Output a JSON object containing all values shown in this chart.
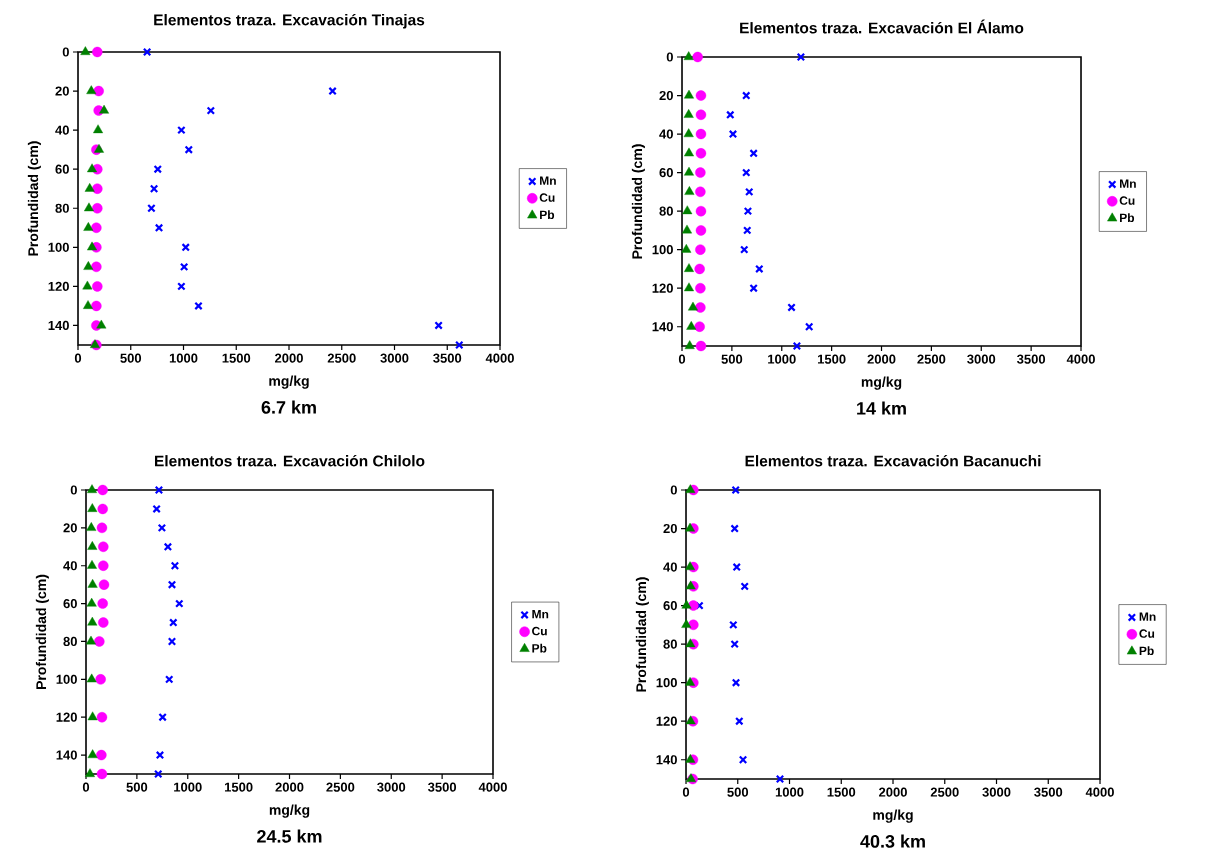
{
  "chart_data": [
    {
      "type": "scatter",
      "title": "Elementos traza. Excavación Tinajas",
      "xlabel": "mg/kg",
      "ylabel": "Profundidad (cm)",
      "annotations": [
        "6.7 km"
      ],
      "xlim": [
        0,
        4000
      ],
      "xticks": [
        0,
        500,
        1000,
        1500,
        2000,
        2500,
        3000,
        3500,
        4000
      ],
      "ylim": [
        150,
        0
      ],
      "yticks": [
        0,
        20,
        40,
        60,
        80,
        100,
        120,
        140
      ],
      "legend": "right",
      "series": [
        {
          "name": "Mn",
          "color": "#0000ff",
          "marker": "cross",
          "x": [
            655,
            2413,
            1259,
            980,
            1050,
            756,
            721,
            696,
            768,
            1021,
            1006,
            980,
            1142,
            3418,
            3614
          ],
          "values": [
            0,
            20,
            30,
            40,
            50,
            60,
            70,
            80,
            90,
            100,
            110,
            120,
            130,
            140,
            150
          ]
        },
        {
          "name": "Cu",
          "color": "#ff00ff",
          "marker": "circle",
          "x": [
            183,
            196,
            196,
            null,
            174,
            183,
            183,
            183,
            174,
            174,
            174,
            183,
            174,
            174,
            174
          ],
          "values": [
            0,
            20,
            30,
            null,
            50,
            60,
            70,
            80,
            90,
            100,
            110,
            120,
            130,
            140,
            150
          ]
        },
        {
          "name": "Pb",
          "color": "#008000",
          "marker": "triangle",
          "x": [
            70,
            126,
            247,
            190,
            199,
            133,
            111,
            104,
            98,
            133,
            98,
            89,
            95,
            221,
            161
          ],
          "values": [
            0,
            20,
            30,
            40,
            50,
            60,
            70,
            80,
            90,
            100,
            110,
            120,
            130,
            140,
            150
          ]
        }
      ]
    },
    {
      "type": "scatter",
      "title": "Elementos traza. Excavación El Álamo",
      "xlabel": "mg/kg",
      "ylabel": "Profundidad (cm)",
      "annotations": [
        "14 km"
      ],
      "xlim": [
        0,
        4000
      ],
      "xticks": [
        0,
        500,
        1000,
        1500,
        2000,
        2500,
        3000,
        3500,
        4000
      ],
      "ylim": [
        150,
        0
      ],
      "yticks": [
        0,
        20,
        40,
        60,
        80,
        100,
        120,
        140
      ],
      "legend": "right",
      "series": [
        {
          "name": "Mn",
          "color": "#0000ff",
          "marker": "cross",
          "x": [
            1192,
            644,
            484,
            511,
            718,
            644,
            674,
            661,
            654,
            624,
            775,
            718,
            1098,
            1275,
            1152
          ],
          "values": [
            0,
            20,
            30,
            40,
            50,
            60,
            70,
            80,
            90,
            100,
            110,
            120,
            130,
            140,
            150
          ]
        },
        {
          "name": "Cu",
          "color": "#ff00ff",
          "marker": "circle",
          "x": [
            157,
            190,
            190,
            190,
            190,
            184,
            184,
            190,
            190,
            184,
            177,
            184,
            184,
            177,
            190
          ],
          "values": [
            0,
            20,
            30,
            40,
            50,
            60,
            70,
            80,
            90,
            100,
            110,
            120,
            130,
            140,
            150
          ]
        },
        {
          "name": "Pb",
          "color": "#008000",
          "marker": "triangle",
          "x": [
            67,
            70,
            67,
            67,
            70,
            70,
            74,
            53,
            50,
            43,
            70,
            70,
            110,
            93,
            77
          ],
          "values": [
            0,
            20,
            30,
            40,
            50,
            60,
            70,
            80,
            90,
            100,
            110,
            120,
            130,
            140,
            150
          ]
        }
      ]
    },
    {
      "type": "scatter",
      "title": "Elementos traza. Excavación Chilolo",
      "xlabel": "mg/kg",
      "ylabel": "Profundidad (cm)",
      "annotations": [
        "24.5 km"
      ],
      "xlim": [
        0,
        4000
      ],
      "xticks": [
        0,
        500,
        1000,
        1500,
        2000,
        2500,
        3000,
        3500,
        4000
      ],
      "ylim": [
        150,
        0
      ],
      "yticks": [
        0,
        20,
        40,
        60,
        80,
        100,
        120,
        140
      ],
      "legend": "right",
      "series": [
        {
          "name": "Mn",
          "color": "#0000ff",
          "marker": "cross",
          "x": [
            717,
            694,
            746,
            805,
            874,
            845,
            917,
            858,
            845,
            818,
            753,
            727,
            710
          ],
          "values": [
            0,
            10,
            20,
            30,
            40,
            50,
            60,
            70,
            80,
            100,
            120,
            140,
            150
          ]
        },
        {
          "name": "Cu",
          "color": "#ff00ff",
          "marker": "circle",
          "x": [
            164,
            164,
            157,
            170,
            170,
            177,
            164,
            170,
            131,
            144,
            157,
            151,
            157
          ],
          "values": [
            0,
            10,
            20,
            30,
            40,
            50,
            60,
            70,
            80,
            100,
            120,
            140,
            150
          ]
        },
        {
          "name": "Pb",
          "color": "#008000",
          "marker": "triangle",
          "x": [
            59,
            62,
            52,
            62,
            59,
            65,
            56,
            62,
            49,
            56,
            65,
            65,
            39
          ],
          "values": [
            0,
            10,
            20,
            30,
            40,
            50,
            60,
            70,
            80,
            100,
            120,
            140,
            150
          ]
        }
      ]
    },
    {
      "type": "scatter",
      "title": "Elementos traza. Excavación Bacanuchi",
      "xlabel": "mg/kg",
      "ylabel": "Profundidad (cm)",
      "annotations": [
        "40.3 km"
      ],
      "xlim": [
        0,
        4000
      ],
      "xticks": [
        0,
        500,
        1000,
        1500,
        2000,
        2500,
        3000,
        3500,
        4000
      ],
      "ylim": [
        150,
        0
      ],
      "yticks": [
        0,
        20,
        40,
        60,
        80,
        100,
        120,
        140
      ],
      "legend": "right",
      "series": [
        {
          "name": "Mn",
          "color": "#0000ff",
          "marker": "cross",
          "x": [
            480,
            470,
            490,
            567,
            130,
            457,
            470,
            483,
            515,
            551,
            908
          ],
          "values": [
            0,
            20,
            40,
            50,
            60,
            70,
            80,
            100,
            120,
            140,
            150
          ]
        },
        {
          "name": "Cu",
          "color": "#ff00ff",
          "marker": "circle",
          "x": [
            71,
            71,
            71,
            71,
            71,
            71,
            71,
            71,
            67,
            67,
            64
          ],
          "values": [
            0,
            20,
            40,
            50,
            60,
            70,
            80,
            100,
            120,
            140,
            150
          ]
        },
        {
          "name": "Pb",
          "color": "#008000",
          "marker": "triangle",
          "x": [
            42,
            39,
            39,
            45,
            5,
            3,
            42,
            39,
            45,
            42,
            48
          ],
          "values": [
            0,
            20,
            40,
            50,
            60,
            70,
            80,
            100,
            120,
            140,
            150
          ]
        }
      ]
    }
  ]
}
